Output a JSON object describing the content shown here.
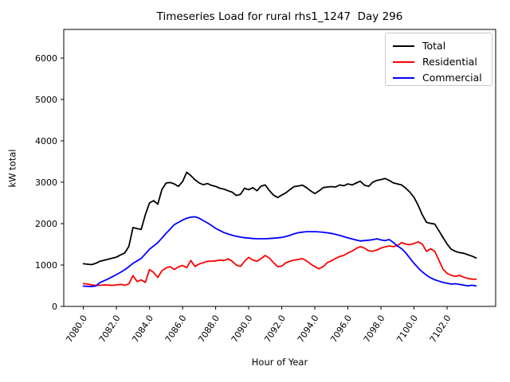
{
  "chart_data": {
    "type": "line",
    "title": "Timeseries Load for rural rhs1_1247  Day 296",
    "xlabel": "Hour of Year",
    "ylabel": "kW total",
    "grid": false,
    "legend_position": "upper right",
    "xlim": [
      7078.8125,
      7104.9375
    ],
    "ylim": [
      0,
      6692
    ],
    "xticks": [
      7080,
      7082,
      7084,
      7086,
      7088,
      7090,
      7092,
      7094,
      7096,
      7098,
      7100,
      7102
    ],
    "xtick_labels": [
      "7080.0",
      "7082.0",
      "7084.0",
      "7086.0",
      "7088.0",
      "7090.0",
      "7092.0",
      "7094.0",
      "7096.0",
      "7098.0",
      "7100.0",
      "7102.0"
    ],
    "yticks": [
      0,
      1000,
      2000,
      3000,
      4000,
      5000,
      6000
    ],
    "ytick_labels": [
      "0",
      "1000",
      "2000",
      "3000",
      "4000",
      "5000",
      "6000"
    ],
    "x_start": 7080.0,
    "x_step": 0.25,
    "x_end": 7103.75,
    "series": [
      {
        "name": "Total",
        "color": "#000000",
        "values": [
          1030,
          1020,
          1010,
          1040,
          1090,
          1115,
          1140,
          1165,
          1190,
          1245,
          1290,
          1450,
          1905,
          1880,
          1860,
          2215,
          2500,
          2555,
          2470,
          2825,
          2980,
          2995,
          2960,
          2900,
          3015,
          3240,
          3160,
          3060,
          2985,
          2940,
          2970,
          2925,
          2900,
          2855,
          2835,
          2795,
          2760,
          2680,
          2705,
          2855,
          2820,
          2870,
          2795,
          2905,
          2935,
          2800,
          2690,
          2630,
          2690,
          2745,
          2825,
          2895,
          2910,
          2930,
          2870,
          2790,
          2725,
          2790,
          2870,
          2885,
          2895,
          2885,
          2935,
          2915,
          2960,
          2935,
          2980,
          3025,
          2930,
          2900,
          3000,
          3045,
          3065,
          3090,
          3045,
          2985,
          2960,
          2935,
          2855,
          2760,
          2635,
          2440,
          2215,
          2035,
          2005,
          1990,
          1830,
          1665,
          1505,
          1380,
          1330,
          1300,
          1285,
          1250,
          1215,
          1170
        ]
      },
      {
        "name": "Residential",
        "color": "#ff0000",
        "values": [
          550,
          540,
          520,
          505,
          510,
          520,
          515,
          508,
          520,
          532,
          510,
          545,
          745,
          600,
          640,
          580,
          890,
          820,
          700,
          860,
          930,
          960,
          890,
          955,
          990,
          935,
          1110,
          965,
          1025,
          1055,
          1090,
          1095,
          1100,
          1120,
          1110,
          1150,
          1090,
          1000,
          965,
          1090,
          1185,
          1120,
          1090,
          1155,
          1230,
          1165,
          1060,
          960,
          975,
          1055,
          1090,
          1120,
          1135,
          1155,
          1100,
          1025,
          960,
          910,
          960,
          1055,
          1100,
          1155,
          1205,
          1230,
          1295,
          1335,
          1400,
          1445,
          1410,
          1345,
          1335,
          1360,
          1410,
          1440,
          1460,
          1445,
          1470,
          1540,
          1505,
          1490,
          1520,
          1560,
          1505,
          1330,
          1390,
          1330,
          1120,
          900,
          800,
          750,
          725,
          750,
          705,
          675,
          660,
          655
        ]
      },
      {
        "name": "Commercial",
        "color": "#0000ff",
        "values": [
          490,
          485,
          480,
          495,
          575,
          620,
          665,
          715,
          770,
          825,
          885,
          960,
          1040,
          1100,
          1160,
          1270,
          1380,
          1460,
          1540,
          1650,
          1765,
          1870,
          1975,
          2030,
          2085,
          2130,
          2155,
          2165,
          2130,
          2075,
          2020,
          1955,
          1885,
          1835,
          1785,
          1750,
          1720,
          1695,
          1675,
          1660,
          1650,
          1640,
          1635,
          1635,
          1635,
          1640,
          1648,
          1657,
          1667,
          1690,
          1720,
          1755,
          1780,
          1795,
          1805,
          1805,
          1805,
          1800,
          1790,
          1778,
          1763,
          1740,
          1718,
          1685,
          1655,
          1628,
          1603,
          1580,
          1590,
          1600,
          1612,
          1635,
          1605,
          1590,
          1615,
          1545,
          1460,
          1395,
          1295,
          1165,
          1040,
          930,
          835,
          755,
          690,
          645,
          612,
          578,
          560,
          538,
          548,
          530,
          515,
          497,
          512,
          495
        ]
      }
    ]
  }
}
